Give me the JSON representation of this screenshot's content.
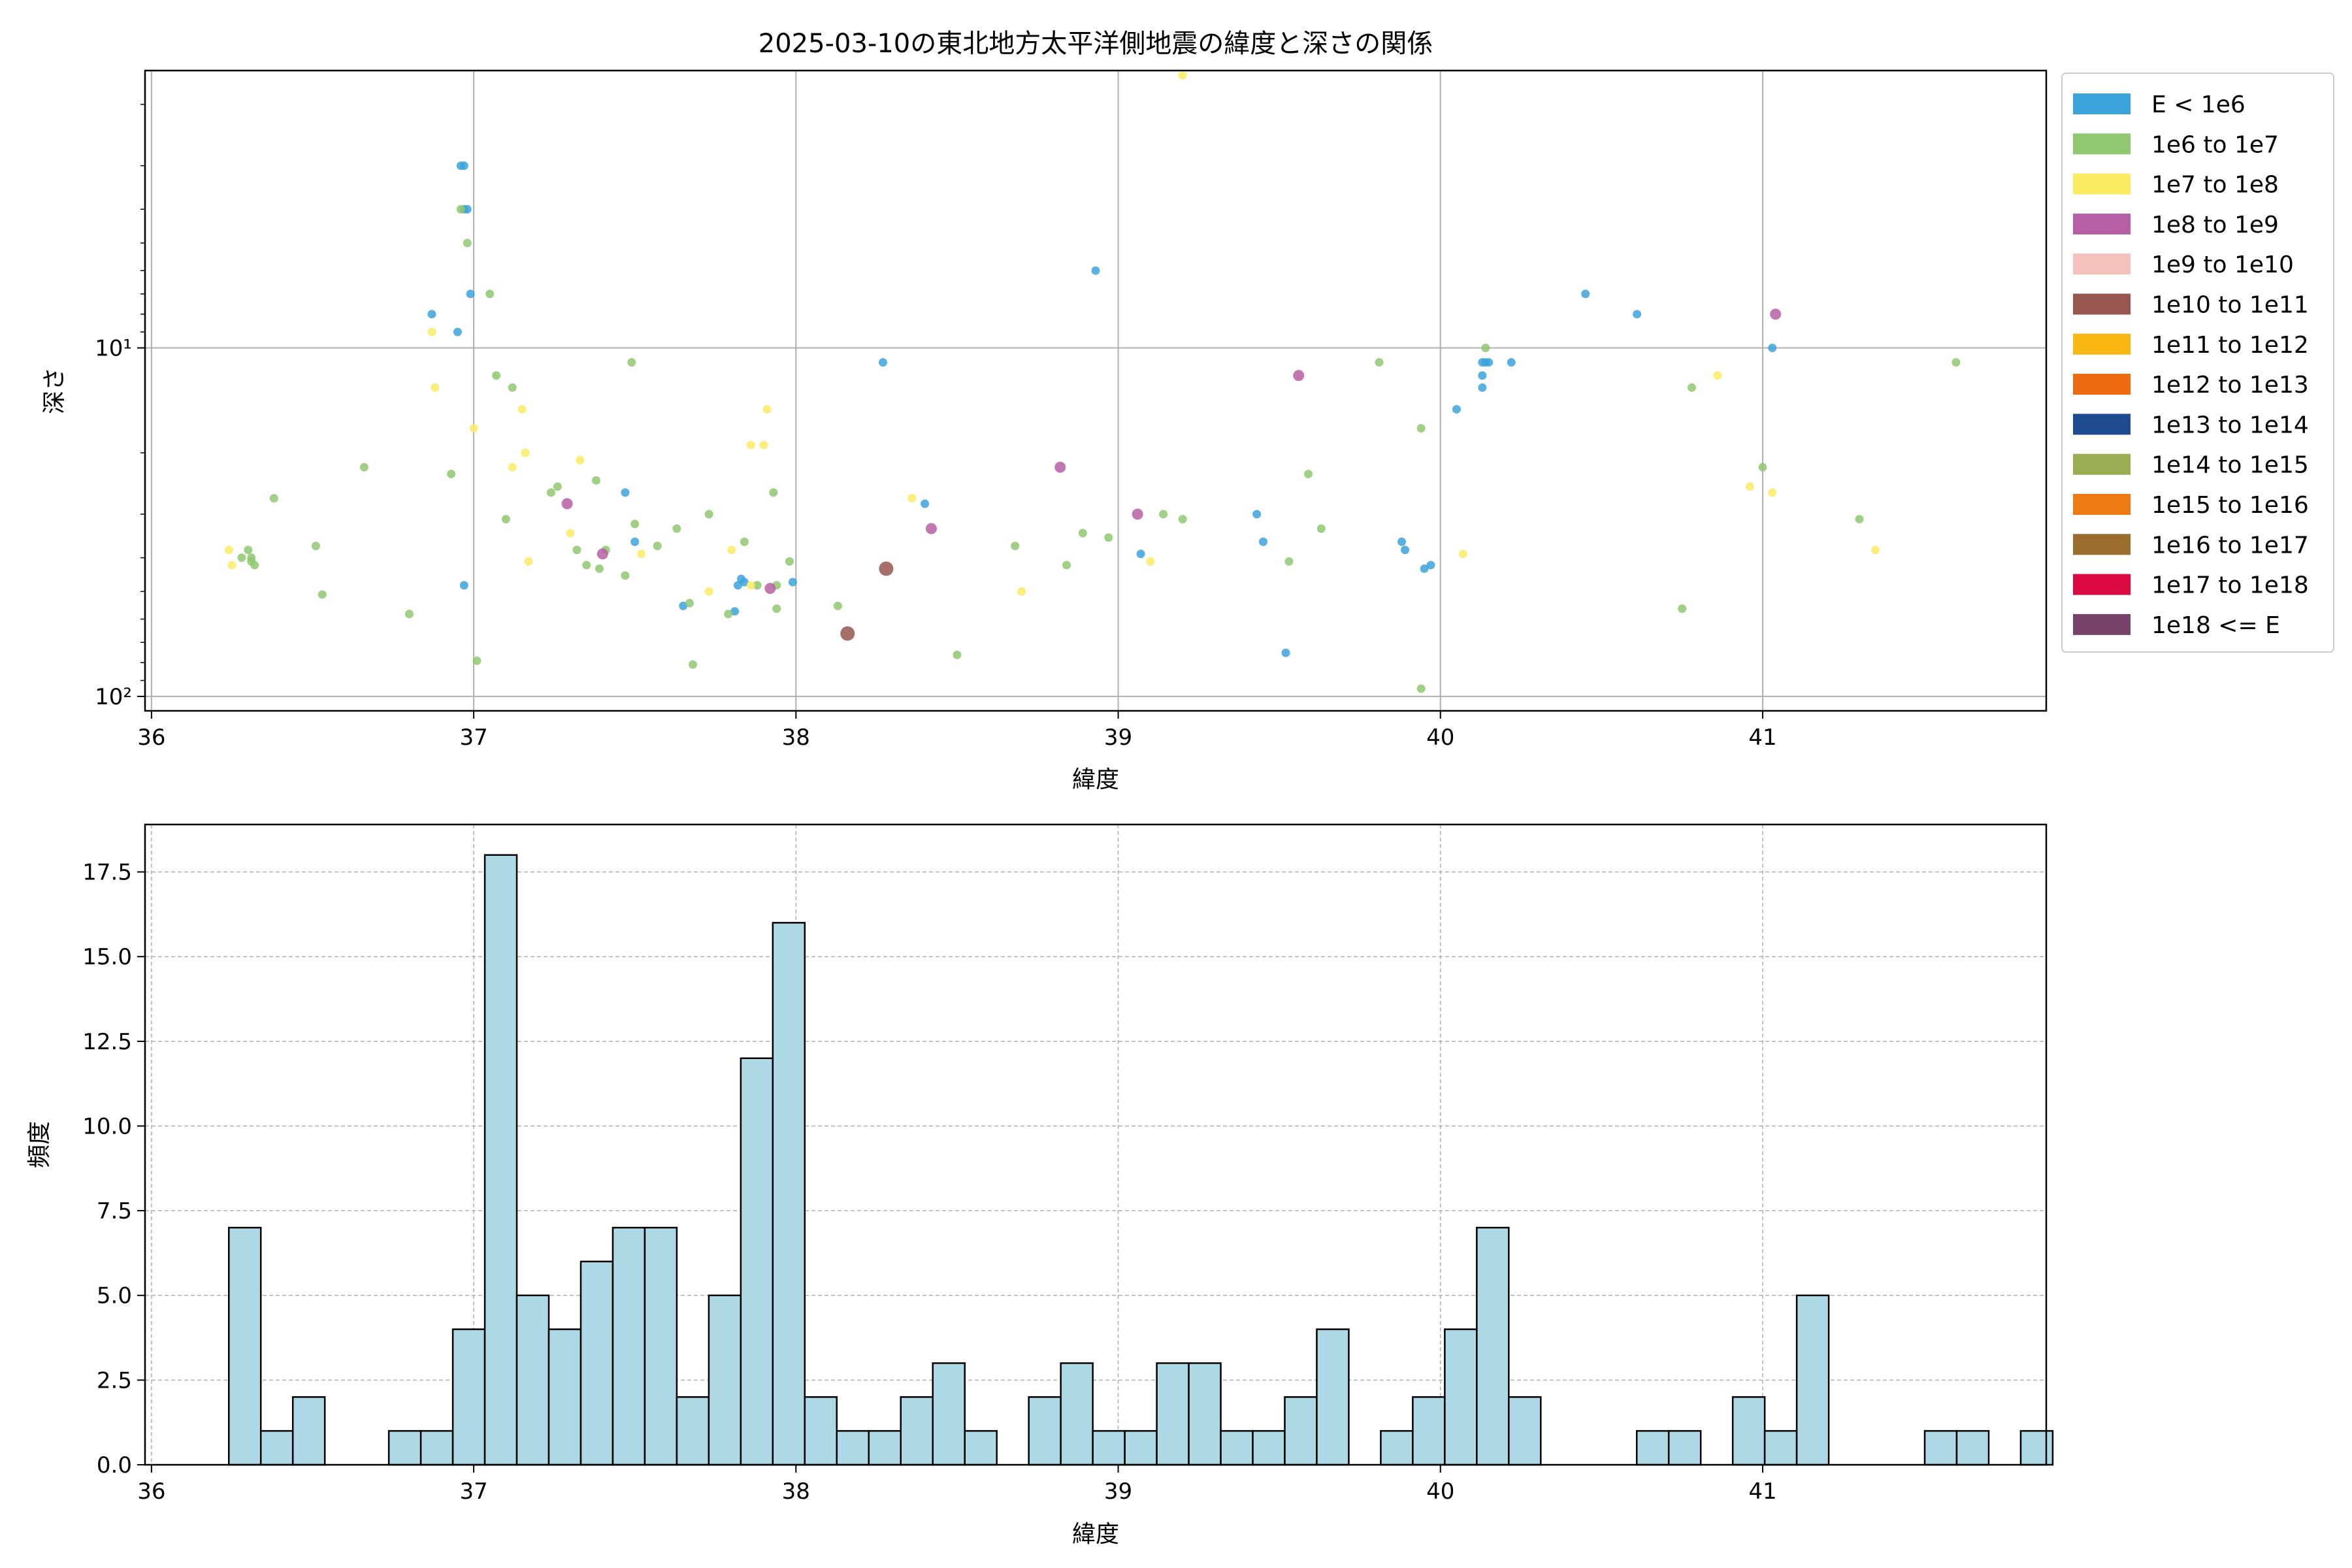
{
  "scatter": {
    "title": "2025-03-10の東北地方太平洋側地震の緯度と深さの関係",
    "xlabel": "緯度",
    "ylabel": "深さ"
  },
  "histogram": {
    "xlabel": "緯度",
    "ylabel": "頻度"
  },
  "chart_data": [
    {
      "type": "scatter",
      "title": "2025-03-10の東北地方太平洋側地震の緯度と深さの関係",
      "xlabel": "緯度",
      "ylabel": "深さ",
      "xlim": [
        35.98,
        41.88
      ],
      "ylim": [
        110,
        1.6
      ],
      "yscale": "log",
      "y_inverted": true,
      "x_ticks": [
        36,
        37,
        38,
        39,
        40,
        41
      ],
      "y_ticks": [
        {
          "value": 10,
          "label": "10¹"
        },
        {
          "value": 100,
          "label": "10²"
        }
      ],
      "grid": true,
      "legend_position": "outside-right",
      "legend": [
        {
          "label": "E < 1e6",
          "color": "#3ba3dc"
        },
        {
          "label": "1e6 to 1e7",
          "color": "#8fc870"
        },
        {
          "label": "1e7 to 1e8",
          "color": "#fbeb63"
        },
        {
          "label": "1e8 to 1e9",
          "color": "#b65fa4"
        },
        {
          "label": "1e9 to 1e10",
          "color": "#f5c1bb"
        },
        {
          "label": "1e10 to 1e11",
          "color": "#985650"
        },
        {
          "label": "1e11 to 1e12",
          "color": "#f8b713"
        },
        {
          "label": "1e12 to 1e13",
          "color": "#ee6a0f"
        },
        {
          "label": "1e13 to 1e14",
          "color": "#1e4a90"
        },
        {
          "label": "1e14 to 1e15",
          "color": "#9bad52"
        },
        {
          "label": "1e15 to 1e16",
          "color": "#ee7b11"
        },
        {
          "label": "1e16 to 1e17",
          "color": "#9a6d2d"
        },
        {
          "label": "1e17 to 1e18",
          "color": "#dc0a41"
        },
        {
          "label": "1e18 <= E",
          "color": "#774269"
        }
      ],
      "series": [
        {
          "name": "E < 1e6",
          "points": [
            [
              36.97,
              3
            ],
            [
              36.96,
              3
            ],
            [
              36.97,
              4
            ],
            [
              36.98,
              4
            ],
            [
              36.99,
              7
            ],
            [
              36.87,
              8
            ],
            [
              36.95,
              9
            ],
            [
              36.97,
              48
            ],
            [
              37.47,
              26
            ],
            [
              37.5,
              36
            ],
            [
              37.65,
              55
            ],
            [
              37.81,
              57
            ],
            [
              37.83,
              46
            ],
            [
              37.84,
              47
            ],
            [
              37.82,
              48
            ],
            [
              37.99,
              47
            ],
            [
              38.27,
              11
            ],
            [
              38.4,
              28
            ],
            [
              38.93,
              6
            ],
            [
              39.07,
              39
            ],
            [
              39.43,
              30
            ],
            [
              39.45,
              36
            ],
            [
              39.52,
              75
            ],
            [
              39.88,
              36
            ],
            [
              39.89,
              38
            ],
            [
              39.95,
              43
            ],
            [
              39.97,
              42
            ],
            [
              40.05,
              15
            ],
            [
              40.13,
              13
            ],
            [
              40.13,
              12
            ],
            [
              40.13,
              11
            ],
            [
              40.14,
              11
            ],
            [
              40.15,
              11
            ],
            [
              40.22,
              11
            ],
            [
              40.45,
              7
            ],
            [
              40.61,
              8
            ],
            [
              41.03,
              10
            ]
          ]
        },
        {
          "name": "1e6 to 1e7",
          "points": [
            [
              36.28,
              40
            ],
            [
              36.3,
              38
            ],
            [
              36.31,
              40
            ],
            [
              36.31,
              41
            ],
            [
              36.32,
              42
            ],
            [
              36.38,
              27
            ],
            [
              36.51,
              37
            ],
            [
              36.53,
              51
            ],
            [
              36.66,
              22
            ],
            [
              36.8,
              58
            ],
            [
              36.93,
              23
            ],
            [
              36.96,
              4
            ],
            [
              36.98,
              5
            ],
            [
              37.01,
              79
            ],
            [
              37.05,
              7
            ],
            [
              37.07,
              12
            ],
            [
              37.1,
              31
            ],
            [
              37.12,
              13
            ],
            [
              37.24,
              26
            ],
            [
              37.26,
              25
            ],
            [
              37.32,
              38
            ],
            [
              37.35,
              42
            ],
            [
              37.38,
              24
            ],
            [
              37.39,
              43
            ],
            [
              37.41,
              38
            ],
            [
              37.47,
              45
            ],
            [
              37.49,
              11
            ],
            [
              37.5,
              32
            ],
            [
              37.57,
              37
            ],
            [
              37.63,
              33
            ],
            [
              37.67,
              54
            ],
            [
              37.68,
              81
            ],
            [
              37.73,
              30
            ],
            [
              37.79,
              58
            ],
            [
              37.84,
              36
            ],
            [
              37.88,
              48
            ],
            [
              37.93,
              26
            ],
            [
              37.94,
              48
            ],
            [
              37.94,
              56
            ],
            [
              37.98,
              41
            ],
            [
              38.13,
              55
            ],
            [
              38.5,
              76
            ],
            [
              38.68,
              37
            ],
            [
              38.84,
              42
            ],
            [
              38.89,
              34
            ],
            [
              38.97,
              35
            ],
            [
              39.14,
              30
            ],
            [
              39.2,
              31
            ],
            [
              39.53,
              41
            ],
            [
              39.59,
              23
            ],
            [
              39.63,
              33
            ],
            [
              39.81,
              11
            ],
            [
              39.94,
              17
            ],
            [
              39.94,
              95
            ],
            [
              40.14,
              10
            ],
            [
              40.75,
              56
            ],
            [
              40.78,
              13
            ],
            [
              41.0,
              22
            ],
            [
              41.3,
              31
            ],
            [
              41.6,
              11
            ]
          ]
        },
        {
          "name": "1e7 to 1e8",
          "points": [
            [
              36.24,
              38
            ],
            [
              36.25,
              42
            ],
            [
              36.87,
              9
            ],
            [
              36.88,
              13
            ],
            [
              37.0,
              17
            ],
            [
              37.12,
              22
            ],
            [
              37.15,
              15
            ],
            [
              37.16,
              20
            ],
            [
              37.17,
              41
            ],
            [
              37.3,
              34
            ],
            [
              37.33,
              21
            ],
            [
              37.52,
              39
            ],
            [
              37.73,
              50
            ],
            [
              37.8,
              38
            ],
            [
              37.86,
              19
            ],
            [
              37.86,
              48
            ],
            [
              37.9,
              19
            ],
            [
              37.91,
              15
            ],
            [
              38.36,
              27
            ],
            [
              38.7,
              50
            ],
            [
              39.1,
              41
            ],
            [
              39.2,
              1.65
            ],
            [
              40.07,
              39
            ],
            [
              40.86,
              12
            ],
            [
              40.96,
              25
            ],
            [
              41.03,
              26
            ],
            [
              41.35,
              38
            ]
          ]
        },
        {
          "name": "1e8 to 1e9",
          "points": [
            [
              37.29,
              28
            ],
            [
              37.4,
              39
            ],
            [
              37.92,
              49
            ],
            [
              38.42,
              33
            ],
            [
              38.82,
              22
            ],
            [
              39.06,
              30
            ],
            [
              39.56,
              12
            ],
            [
              41.04,
              8
            ]
          ]
        },
        {
          "name": "1e10 to 1e11",
          "points": [
            [
              38.16,
              66
            ],
            [
              38.28,
              43
            ]
          ]
        }
      ]
    },
    {
      "type": "bar",
      "title": "",
      "xlabel": "緯度",
      "ylabel": "頻度",
      "xlim": [
        35.98,
        41.88
      ],
      "ylim": [
        0,
        18.9
      ],
      "x_ticks": [
        36,
        37,
        38,
        39,
        40,
        41
      ],
      "y_ticks": [
        0.0,
        2.5,
        5.0,
        7.5,
        10.0,
        12.5,
        15.0,
        17.5
      ],
      "grid": true,
      "bar_color": "#add8e6",
      "bin_start": 36.24,
      "bin_width": 0.0993,
      "values": [
        7,
        1,
        2,
        0,
        0,
        1,
        1,
        4,
        18,
        5,
        4,
        6,
        7,
        7,
        2,
        5,
        12,
        16,
        2,
        1,
        1,
        2,
        3,
        1,
        0,
        2,
        3,
        1,
        1,
        3,
        3,
        1,
        1,
        2,
        4,
        0,
        1,
        2,
        4,
        7,
        2,
        0,
        0,
        0,
        1,
        1,
        0,
        2,
        1,
        5,
        0,
        0,
        0,
        1,
        1,
        0,
        1
      ]
    }
  ]
}
